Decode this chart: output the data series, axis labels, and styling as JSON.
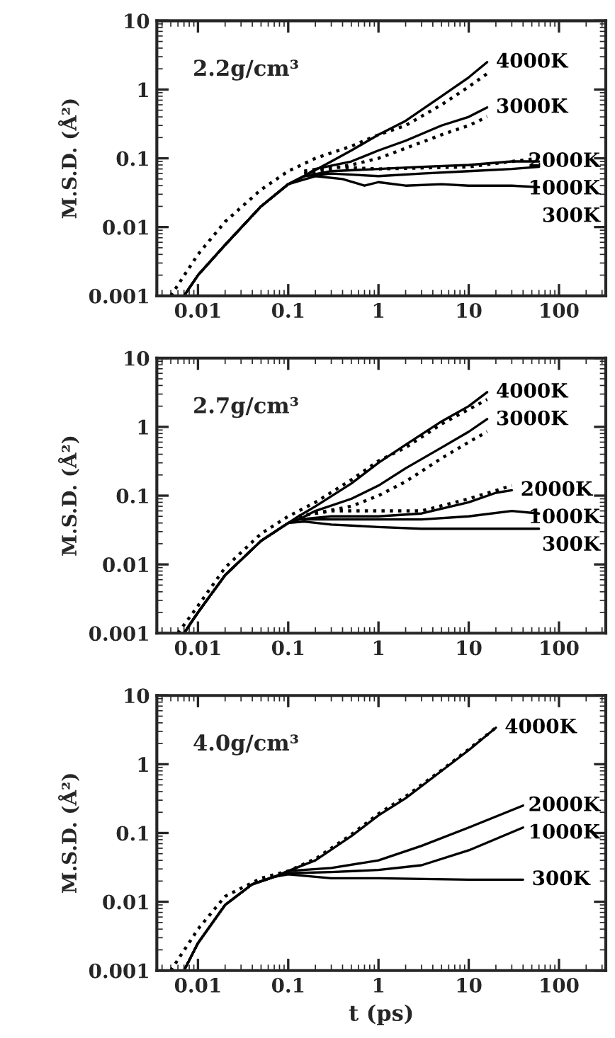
{
  "chart_data": [
    {
      "type": "line",
      "ylabel": "M.S.D. (Å²)",
      "annotations": [
        "2.2g/cm³"
      ],
      "log": "xy",
      "xlim": [
        0.0035,
        330
      ],
      "ylim": [
        0.001,
        10
      ],
      "xticks": [
        0.01,
        0.1,
        1,
        10,
        100
      ],
      "yticks": [
        0.001,
        0.01,
        0.1,
        1,
        10
      ],
      "grid": false,
      "legend": false,
      "marker": "none",
      "series": [
        {
          "name": "4000K",
          "color": "#000000",
          "line_style": "solid",
          "x": [
            0.007,
            0.01,
            0.02,
            0.05,
            0.1,
            0.15,
            0.3,
            0.5,
            1,
            2,
            5,
            10,
            16
          ],
          "values": [
            0.001,
            0.002,
            0.0055,
            0.02,
            0.042,
            0.055,
            0.09,
            0.13,
            0.22,
            0.35,
            0.8,
            1.5,
            2.5
          ]
        },
        {
          "color": "#000000",
          "line_style": "dotted",
          "x": [
            0.005,
            0.01,
            0.02,
            0.05,
            0.1,
            0.2,
            0.5,
            1,
            2,
            5,
            10,
            16
          ],
          "values": [
            0.001,
            0.004,
            0.012,
            0.035,
            0.065,
            0.1,
            0.15,
            0.22,
            0.3,
            0.6,
            1.1,
            1.7
          ]
        },
        {
          "name": "3000K",
          "color": "#000000",
          "line_style": "solid",
          "x": [
            0.007,
            0.01,
            0.02,
            0.05,
            0.1,
            0.15,
            0.2,
            0.5,
            1,
            2,
            5,
            10,
            16
          ],
          "values": [
            0.001,
            0.002,
            0.0055,
            0.02,
            0.042,
            0.055,
            0.07,
            0.09,
            0.13,
            0.18,
            0.3,
            0.4,
            0.55
          ]
        },
        {
          "color": "#000000",
          "line_style": "dotted",
          "x": [
            0.15,
            0.5,
            1,
            2,
            5,
            10,
            16
          ],
          "values": [
            0.06,
            0.08,
            0.1,
            0.14,
            0.22,
            0.3,
            0.4
          ]
        },
        {
          "name": "2000K",
          "color": "#000000",
          "line_style": "solid",
          "x": [
            0.007,
            0.01,
            0.02,
            0.05,
            0.1,
            0.15,
            0.3,
            1,
            3,
            10,
            30,
            60
          ],
          "values": [
            0.001,
            0.002,
            0.0055,
            0.02,
            0.042,
            0.055,
            0.065,
            0.07,
            0.075,
            0.08,
            0.09,
            0.09
          ]
        },
        {
          "color": "#000000",
          "line_style": "dotted",
          "x": [
            0.15,
            0.3,
            1,
            10,
            30,
            60
          ],
          "values": [
            0.065,
            0.075,
            0.07,
            0.075,
            0.09,
            0.1
          ]
        },
        {
          "name": "1000K",
          "color": "#000000",
          "line_style": "solid",
          "x": [
            0.007,
            0.01,
            0.02,
            0.05,
            0.1,
            0.15,
            0.3,
            1,
            3,
            10,
            30,
            60
          ],
          "values": [
            0.001,
            0.002,
            0.0055,
            0.02,
            0.042,
            0.055,
            0.06,
            0.055,
            0.06,
            0.065,
            0.07,
            0.075
          ]
        },
        {
          "name": "300K",
          "color": "#000000",
          "line_style": "solid",
          "x": [
            0.007,
            0.01,
            0.02,
            0.05,
            0.1,
            0.2,
            0.4,
            0.7,
            1,
            2,
            5,
            10,
            30,
            60
          ],
          "values": [
            0.001,
            0.002,
            0.0055,
            0.02,
            0.042,
            0.055,
            0.05,
            0.04,
            0.045,
            0.04,
            0.042,
            0.04,
            0.04,
            0.038
          ]
        }
      ]
    },
    {
      "type": "line",
      "ylabel": "M.S.D. (Å²)",
      "annotations": [
        "2.7g/cm³"
      ],
      "log": "xy",
      "xlim": [
        0.0035,
        330
      ],
      "ylim": [
        0.001,
        10
      ],
      "xticks": [
        0.01,
        0.1,
        1,
        10,
        100
      ],
      "yticks": [
        0.001,
        0.01,
        0.1,
        1,
        10
      ],
      "grid": false,
      "legend": false,
      "marker": "none",
      "series": [
        {
          "name": "4000K",
          "color": "#000000",
          "line_style": "solid",
          "x": [
            0.007,
            0.01,
            0.02,
            0.05,
            0.1,
            0.13,
            0.2,
            0.5,
            1,
            2,
            5,
            10,
            16
          ],
          "values": [
            0.001,
            0.002,
            0.007,
            0.022,
            0.04,
            0.05,
            0.07,
            0.15,
            0.3,
            0.55,
            1.2,
            2.0,
            3.2
          ]
        },
        {
          "color": "#000000",
          "line_style": "dotted",
          "x": [
            0.006,
            0.01,
            0.02,
            0.05,
            0.1,
            0.2,
            0.5,
            1,
            2,
            5,
            10,
            16
          ],
          "values": [
            0.001,
            0.0025,
            0.009,
            0.028,
            0.05,
            0.08,
            0.17,
            0.32,
            0.5,
            1.1,
            1.8,
            2.5
          ]
        },
        {
          "name": "3000K",
          "color": "#000000",
          "line_style": "solid",
          "x": [
            0.007,
            0.01,
            0.02,
            0.05,
            0.1,
            0.13,
            0.2,
            0.5,
            1,
            2,
            5,
            10,
            16
          ],
          "values": [
            0.001,
            0.002,
            0.007,
            0.022,
            0.04,
            0.045,
            0.06,
            0.09,
            0.14,
            0.25,
            0.5,
            0.85,
            1.3
          ]
        },
        {
          "color": "#000000",
          "line_style": "dotted",
          "x": [
            0.13,
            0.5,
            1,
            2,
            5,
            10,
            16
          ],
          "values": [
            0.05,
            0.07,
            0.1,
            0.16,
            0.35,
            0.6,
            0.85
          ]
        },
        {
          "name": "2000K",
          "color": "#000000",
          "line_style": "solid",
          "x": [
            0.007,
            0.01,
            0.02,
            0.05,
            0.1,
            0.13,
            0.3,
            1,
            3,
            10,
            20,
            30
          ],
          "values": [
            0.001,
            0.002,
            0.007,
            0.022,
            0.04,
            0.045,
            0.05,
            0.05,
            0.055,
            0.08,
            0.11,
            0.12
          ]
        },
        {
          "color": "#000000",
          "line_style": "dotted",
          "x": [
            0.13,
            0.3,
            1,
            3,
            10,
            30
          ],
          "values": [
            0.05,
            0.06,
            0.06,
            0.06,
            0.09,
            0.14
          ]
        },
        {
          "name": "1000K",
          "color": "#000000",
          "line_style": "solid",
          "x": [
            0.007,
            0.01,
            0.02,
            0.05,
            0.1,
            0.13,
            0.3,
            1,
            3,
            10,
            30,
            60
          ],
          "values": [
            0.001,
            0.002,
            0.007,
            0.022,
            0.04,
            0.045,
            0.045,
            0.045,
            0.045,
            0.05,
            0.06,
            0.055
          ]
        },
        {
          "name": "300K",
          "color": "#000000",
          "line_style": "solid",
          "x": [
            0.007,
            0.01,
            0.02,
            0.05,
            0.1,
            0.15,
            0.3,
            1,
            3,
            10,
            30,
            60
          ],
          "values": [
            0.001,
            0.002,
            0.007,
            0.022,
            0.04,
            0.042,
            0.038,
            0.035,
            0.033,
            0.033,
            0.033,
            0.033
          ]
        }
      ]
    },
    {
      "type": "line",
      "ylabel": "M.S.D. (Å²)",
      "xlabel": "t (ps)",
      "annotations": [
        "4.0g/cm³"
      ],
      "log": "xy",
      "xlim": [
        0.0035,
        330
      ],
      "ylim": [
        0.001,
        10
      ],
      "xticks": [
        0.01,
        0.1,
        1,
        10,
        100
      ],
      "yticks": [
        0.001,
        0.01,
        0.1,
        1,
        10
      ],
      "grid": false,
      "legend": false,
      "marker": "none",
      "series": [
        {
          "name": "4000K",
          "color": "#000000",
          "line_style": "solid",
          "x": [
            0.007,
            0.01,
            0.02,
            0.04,
            0.07,
            0.1,
            0.2,
            0.5,
            1,
            2,
            5,
            10,
            20
          ],
          "values": [
            0.001,
            0.0025,
            0.009,
            0.018,
            0.023,
            0.028,
            0.04,
            0.09,
            0.18,
            0.32,
            0.8,
            1.6,
            3.4
          ]
        },
        {
          "color": "#000000",
          "line_style": "dotted",
          "x": [
            0.005,
            0.01,
            0.02,
            0.05,
            0.1,
            0.2,
            0.5,
            1,
            2,
            5,
            10,
            20
          ],
          "values": [
            0.001,
            0.004,
            0.012,
            0.022,
            0.028,
            0.042,
            0.095,
            0.19,
            0.34,
            0.82,
            1.65,
            3.4
          ]
        },
        {
          "name": "2000K",
          "color": "#000000",
          "line_style": "solid",
          "x": [
            0.007,
            0.01,
            0.02,
            0.04,
            0.07,
            0.1,
            0.3,
            1,
            3,
            10,
            40
          ],
          "values": [
            0.001,
            0.0025,
            0.009,
            0.018,
            0.023,
            0.028,
            0.031,
            0.04,
            0.065,
            0.12,
            0.25
          ]
        },
        {
          "name": "1000K",
          "color": "#000000",
          "line_style": "solid",
          "x": [
            0.007,
            0.01,
            0.02,
            0.04,
            0.07,
            0.1,
            0.3,
            1,
            3,
            10,
            40
          ],
          "values": [
            0.001,
            0.0025,
            0.009,
            0.018,
            0.023,
            0.026,
            0.027,
            0.029,
            0.034,
            0.056,
            0.12
          ]
        },
        {
          "name": "300K",
          "color": "#000000",
          "line_style": "solid",
          "x": [
            0.007,
            0.01,
            0.02,
            0.04,
            0.07,
            0.1,
            0.3,
            1,
            10,
            40
          ],
          "values": [
            0.001,
            0.0025,
            0.009,
            0.018,
            0.023,
            0.025,
            0.022,
            0.022,
            0.021,
            0.021
          ]
        }
      ]
    }
  ]
}
